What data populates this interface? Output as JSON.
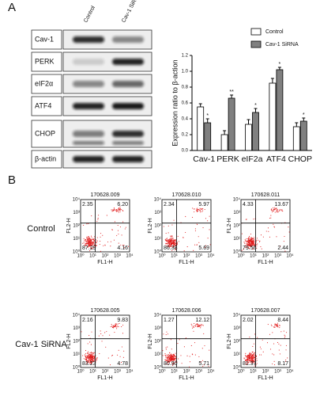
{
  "panel_a": {
    "label": "A",
    "blot": {
      "columns": [
        "Control",
        "Cav-1 SiRNA"
      ],
      "rows": [
        "Cav-1",
        "PERK",
        "eIF2α",
        "ATF4",
        "CHOP",
        "β-actin"
      ]
    }
  },
  "chart_data": {
    "type": "bar",
    "ylabel": "Expression ratio to β-action",
    "categories": [
      "Cav-1",
      "PERK",
      "eIF2a",
      "ATF4",
      "CHOP"
    ],
    "series": [
      {
        "name": "Control",
        "color": "#ffffff",
        "values": [
          0.55,
          0.2,
          0.33,
          0.85,
          0.3
        ],
        "errors": [
          0.04,
          0.05,
          0.06,
          0.06,
          0.05
        ]
      },
      {
        "name": "Cav-1 SiRNA",
        "color": "#808080",
        "values": [
          0.35,
          0.66,
          0.48,
          1.02,
          0.37
        ],
        "errors": [
          0.05,
          0.04,
          0.05,
          0.03,
          0.04
        ],
        "annotations": [
          "*",
          "**",
          "*",
          "*",
          "*"
        ]
      }
    ],
    "ylim": [
      0,
      1.2
    ],
    "yticks": [
      {
        "value": 0,
        "label": "0.0"
      },
      {
        "value": 0.2,
        "label": "0.2"
      },
      {
        "value": 0.4,
        "label": "0.4"
      },
      {
        "value": 0.6,
        "label": "0.6"
      },
      {
        "value": 0.8,
        "label": "0.8"
      },
      {
        "value": 1,
        "label": "1.0"
      },
      {
        "value": 1.2,
        "label": "1.2"
      }
    ]
  },
  "panel_b": {
    "label": "B",
    "x_label": "FL1-H",
    "y_label": "FL2-H",
    "ticks": [
      "10⁰",
      "10¹",
      "10²",
      "10³",
      "10⁴"
    ],
    "rows": [
      {
        "label": "Control",
        "plots": [
          {
            "id": "170628.009",
            "quadrants": [
              "2.35",
              "6.20",
              "87.29",
              "4.16"
            ]
          },
          {
            "id": "170628.010",
            "quadrants": [
              "2.34",
              "5.97",
              "86.38",
              "5.69"
            ]
          },
          {
            "id": "170628.011",
            "quadrants": [
              "4.33",
              "13.67",
              "79.56",
              "2.44"
            ]
          }
        ]
      },
      {
        "label": "Cav-1 SiRNA",
        "plots": [
          {
            "id": "170628.005",
            "quadrants": [
              "2.16",
              "9.83",
              "83.23",
              "4.78"
            ]
          },
          {
            "id": "170628.006",
            "quadrants": [
              "1.27",
              "12.12",
              "80.90",
              "5.71"
            ]
          },
          {
            "id": "170628.007",
            "quadrants": [
              "2.02",
              "8.44",
              "81.37",
              "8.17"
            ]
          }
        ]
      }
    ]
  }
}
